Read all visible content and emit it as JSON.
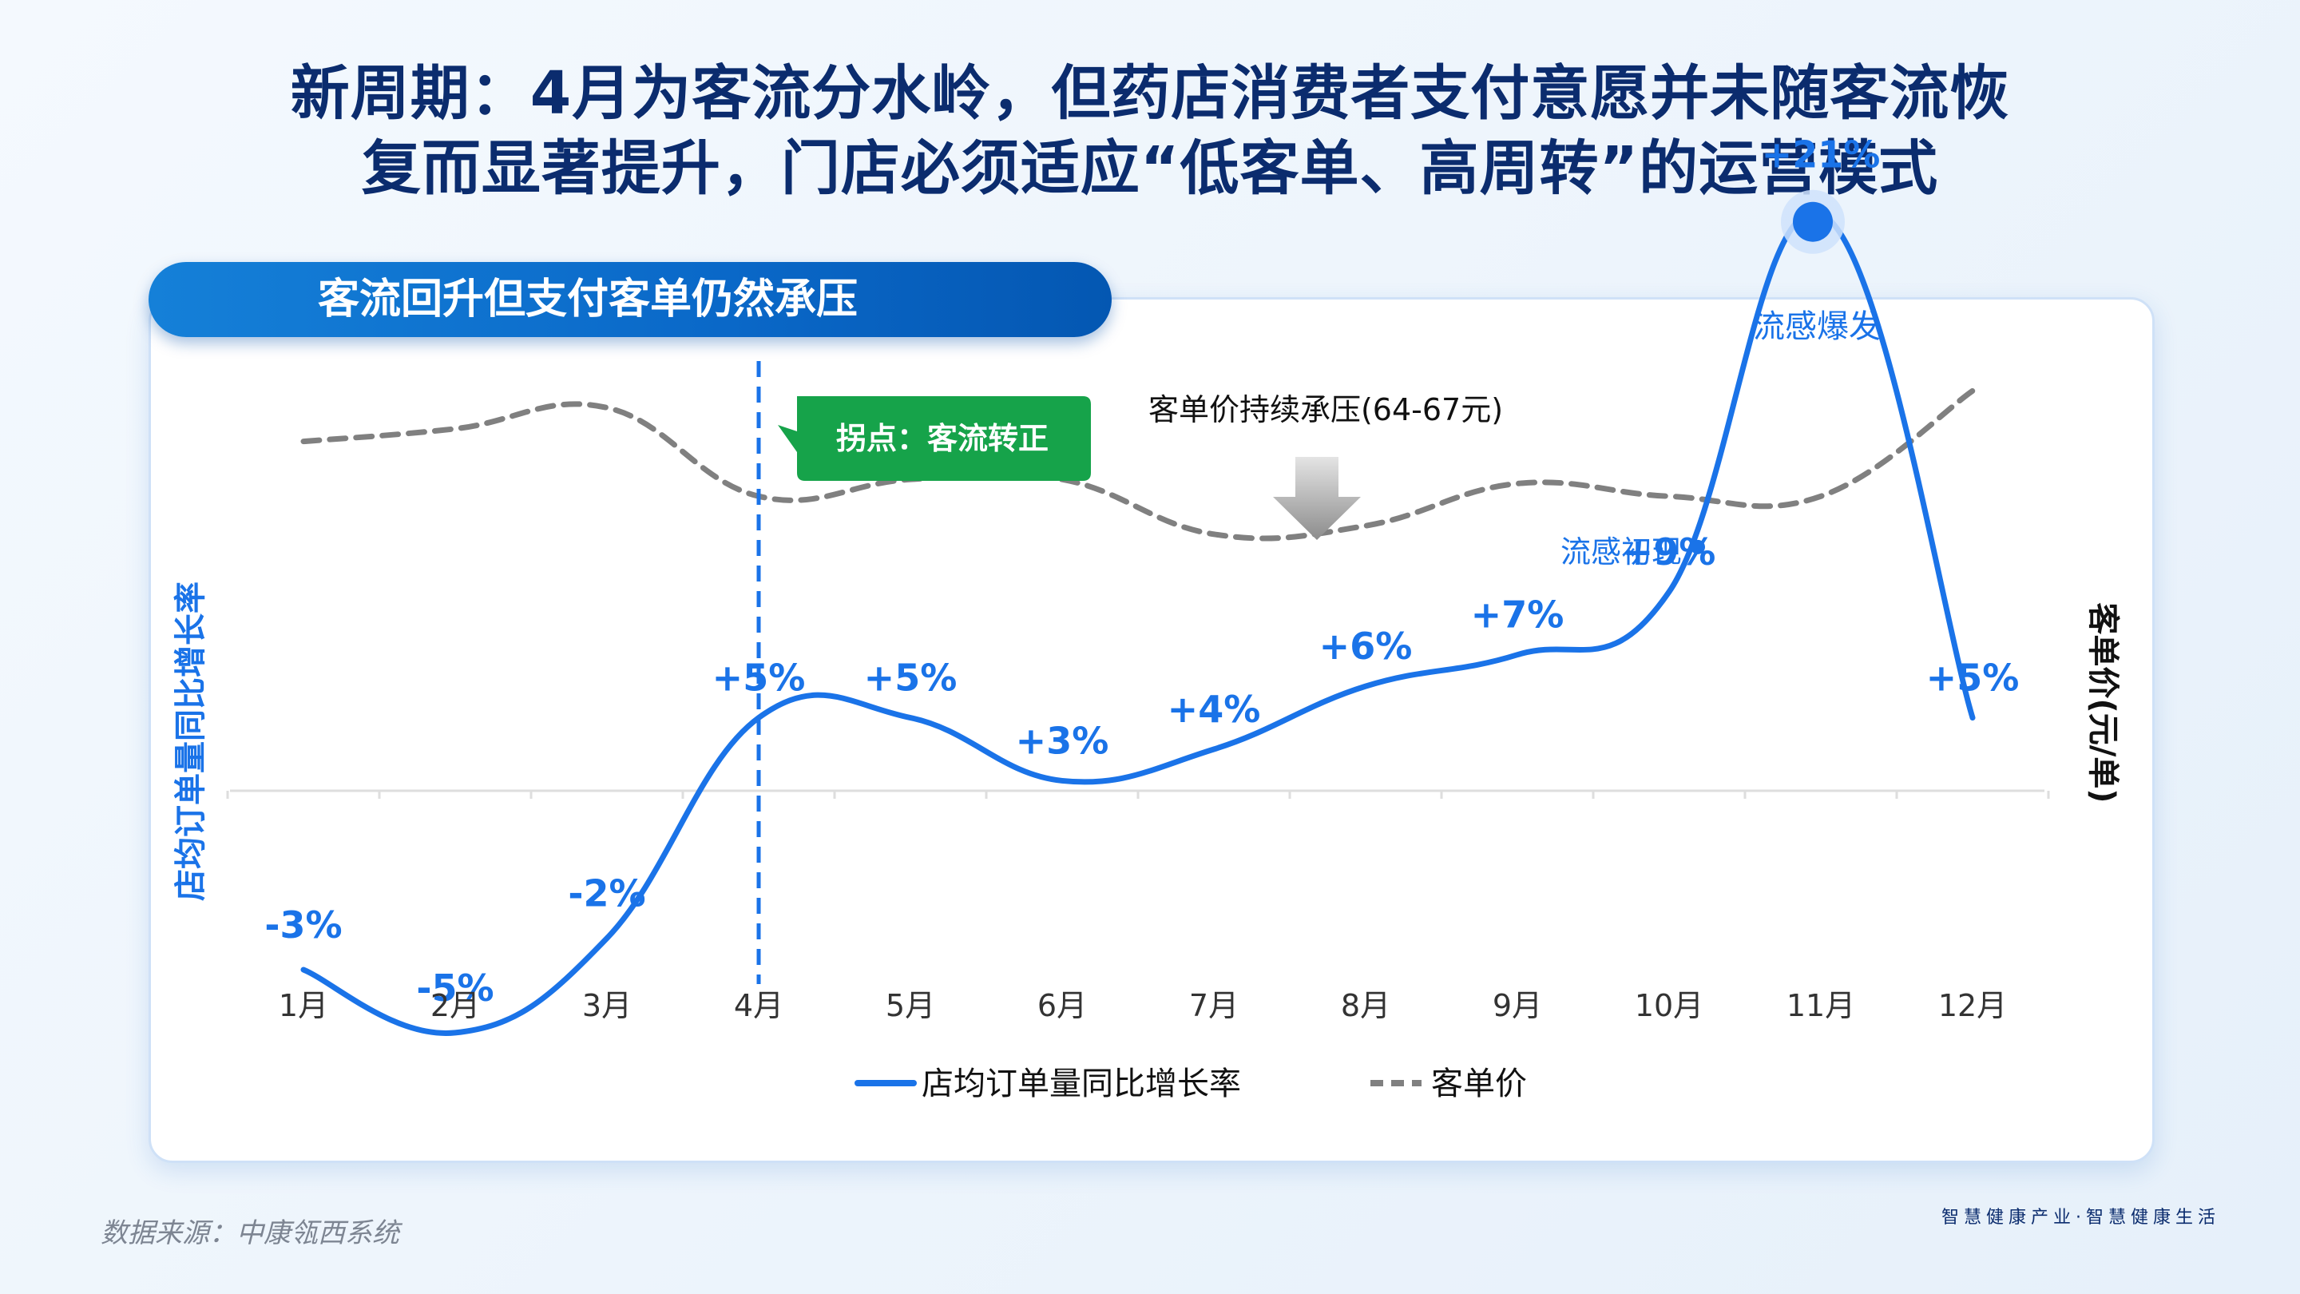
{
  "title_lines": [
    "新周期：4月为客流分水岭，但药店消费者支付意愿并未随客流恢",
    "复而显著提升，门店必须适应“低客单、高周转”的运营模式"
  ],
  "banner_title": "客流回升但支付客单仍然承压",
  "source_note": "数据来源：中康瓴西系统",
  "brand_slogan": "智慧健康产业·智慧健康生活",
  "colors": {
    "primary_line": "#1a73e8",
    "secondary_line": "#808080",
    "callout_green": "#16a34a",
    "title": "#0b2c6e"
  },
  "chart_data": {
    "type": "line",
    "categories": [
      "1月",
      "2月",
      "3月",
      "4月",
      "5月",
      "6月",
      "7月",
      "8月",
      "9月",
      "10月",
      "11月",
      "12月"
    ],
    "y_left_label": "店均订单量同比增长率",
    "y_right_label": "客单价(元/单)",
    "series": [
      {
        "name": "店均订单量同比增长率",
        "axis": "left",
        "style": "solid",
        "unit": "%",
        "values": [
          -3,
          -5,
          -2,
          5,
          5,
          3,
          4,
          6,
          7,
          9,
          21,
          5
        ],
        "labels": [
          "-3%",
          "-5%",
          "-2%",
          "+5%",
          "+5%",
          "+3%",
          "+4%",
          "+6%",
          "+7%",
          "+9%",
          "+21%",
          "+5%"
        ]
      },
      {
        "name": "客单价",
        "axis": "right",
        "style": "dashed",
        "unit": "元/单",
        "values": [
          66.2,
          66.5,
          67.0,
          64.9,
          65.3,
          65.3,
          64.0,
          64.2,
          65.2,
          64.9,
          64.9,
          67.4
        ]
      }
    ],
    "y_left_range": [
      -10,
      25
    ],
    "y_right_range": [
      50,
      75
    ],
    "annotations": {
      "inflection_label": "拐点：客流转正",
      "inflection_month": "4月",
      "pressure_label": "客单价持续承压(64-67元)",
      "flu_start_label": "流感初现",
      "flu_start_month": "10月",
      "flu_peak_label": "流感爆发",
      "flu_peak_month": "11月"
    },
    "legend_position": "bottom-center",
    "grid": false
  }
}
